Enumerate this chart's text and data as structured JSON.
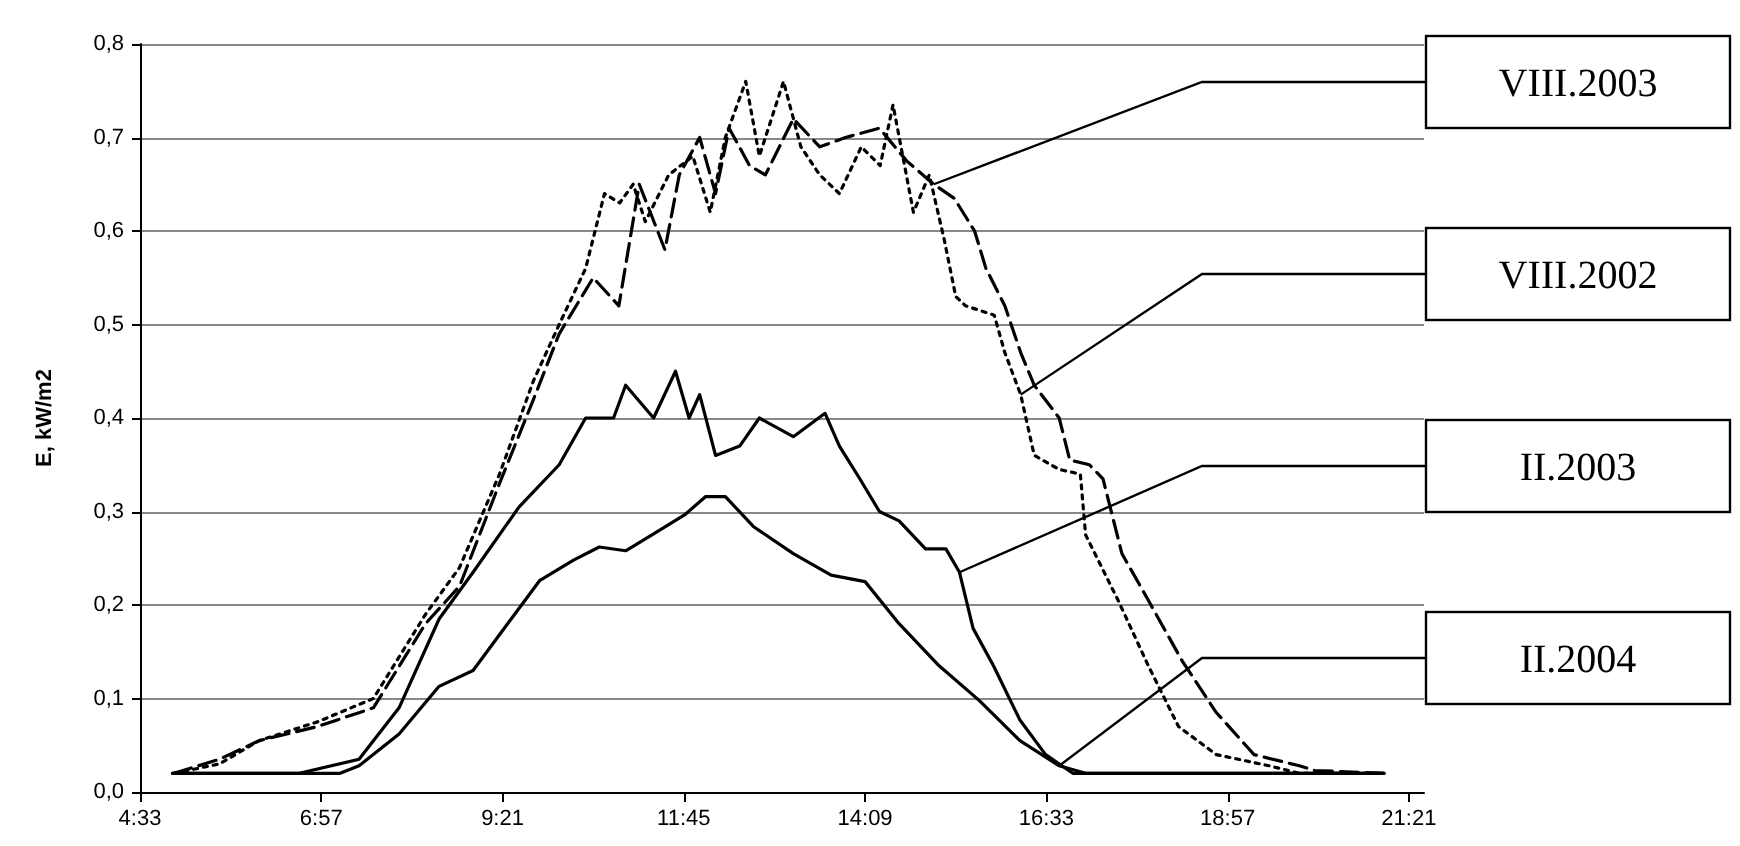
{
  "chart_data": {
    "type": "line",
    "ylabel": "E, kW/m2",
    "xlim": [
      4.55,
      21.55
    ],
    "xticks": [
      {
        "value": 4.55,
        "label": "4:33"
      },
      {
        "value": 6.95,
        "label": "6:57"
      },
      {
        "value": 9.35,
        "label": "9:21"
      },
      {
        "value": 11.75,
        "label": "11:45"
      },
      {
        "value": 14.15,
        "label": "14:09"
      },
      {
        "value": 16.55,
        "label": "16:33"
      },
      {
        "value": 18.95,
        "label": "18:57"
      },
      {
        "value": 21.35,
        "label": "21:21"
      }
    ],
    "ylim": [
      0,
      0.8
    ],
    "yticks": [
      {
        "value": 0,
        "label": "0,0"
      },
      {
        "value": 0.1,
        "label": "0,1"
      },
      {
        "value": 0.2,
        "label": "0,2"
      },
      {
        "value": 0.3,
        "label": "0,3"
      },
      {
        "value": 0.4,
        "label": "0,4"
      },
      {
        "value": 0.5,
        "label": "0,5"
      },
      {
        "value": 0.6,
        "label": "0,6"
      },
      {
        "value": 0.7,
        "label": "0,7"
      },
      {
        "value": 0.8,
        "label": "0,8"
      }
    ],
    "grid": "y",
    "marker": "none",
    "series": [
      {
        "name": "VIII.2003",
        "color": "#000000",
        "line_style": "dashed",
        "x": [
          5.0,
          5.6,
          6.13,
          6.9,
          7.64,
          8.33,
          8.78,
          9.31,
          9.76,
          10.1,
          10.55,
          10.89,
          11.16,
          11.5,
          11.69,
          11.96,
          12.17,
          12.35,
          12.62,
          12.83,
          13.2,
          13.55,
          13.89,
          14.34,
          14.7,
          15.06,
          15.33,
          15.6,
          15.75,
          16.0,
          16.21,
          16.39,
          16.72,
          16.86,
          17.12,
          17.3,
          17.55,
          17.9,
          18.35,
          18.8,
          19.3,
          19.9,
          20.1,
          21.02
        ],
        "values": [
          0.02,
          0.035,
          0.055,
          0.07,
          0.09,
          0.18,
          0.22,
          0.33,
          0.42,
          0.49,
          0.55,
          0.52,
          0.65,
          0.58,
          0.66,
          0.7,
          0.64,
          0.71,
          0.67,
          0.66,
          0.72,
          0.69,
          0.7,
          0.71,
          0.675,
          0.65,
          0.635,
          0.6,
          0.56,
          0.52,
          0.47,
          0.435,
          0.4,
          0.355,
          0.35,
          0.335,
          0.255,
          0.205,
          0.14,
          0.085,
          0.04,
          0.028,
          0.023,
          0.02
        ]
      },
      {
        "name": "VIII.2002",
        "color": "#000000",
        "line_style": "dotted",
        "x": [
          5.0,
          5.6,
          6.13,
          6.9,
          7.64,
          8.33,
          8.78,
          9.31,
          9.76,
          10.1,
          10.45,
          10.7,
          10.9,
          11.08,
          11.24,
          11.55,
          11.87,
          12.1,
          12.3,
          12.57,
          12.75,
          13.07,
          13.3,
          13.55,
          13.81,
          14.1,
          14.35,
          14.52,
          14.79,
          15.0,
          15.2,
          15.35,
          15.48,
          15.86,
          16.0,
          16.21,
          16.39,
          16.72,
          17.0,
          17.07,
          17.5,
          17.9,
          18.3,
          18.8,
          19.5,
          19.9,
          21.02
        ],
        "values": [
          0.02,
          0.03,
          0.055,
          0.075,
          0.1,
          0.19,
          0.24,
          0.34,
          0.44,
          0.5,
          0.56,
          0.64,
          0.63,
          0.65,
          0.61,
          0.66,
          0.68,
          0.62,
          0.7,
          0.76,
          0.68,
          0.76,
          0.69,
          0.66,
          0.64,
          0.69,
          0.67,
          0.735,
          0.62,
          0.66,
          0.59,
          0.53,
          0.52,
          0.51,
          0.47,
          0.425,
          0.36,
          0.345,
          0.34,
          0.275,
          0.205,
          0.135,
          0.07,
          0.04,
          0.028,
          0.02,
          0.02
        ]
      },
      {
        "name": "II.2003",
        "color": "#000000",
        "line_style": "solid",
        "x": [
          4.98,
          6.66,
          7.45,
          7.98,
          8.51,
          8.96,
          9.57,
          10.1,
          10.45,
          10.82,
          10.98,
          11.35,
          11.64,
          11.82,
          11.96,
          12.17,
          12.49,
          12.75,
          13.2,
          13.62,
          13.81,
          14.08,
          14.34,
          14.6,
          14.95,
          15.22,
          15.4,
          15.58,
          15.85,
          16.2,
          16.54,
          16.9,
          21.02
        ],
        "values": [
          0.02,
          0.02,
          0.035,
          0.09,
          0.185,
          0.235,
          0.305,
          0.35,
          0.4,
          0.4,
          0.435,
          0.4,
          0.45,
          0.4,
          0.425,
          0.36,
          0.37,
          0.4,
          0.38,
          0.405,
          0.37,
          0.335,
          0.3,
          0.29,
          0.26,
          0.26,
          0.235,
          0.175,
          0.135,
          0.077,
          0.04,
          0.02,
          0.02
        ]
      },
      {
        "name": "II.2004",
        "color": "#000000",
        "line_style": "solid",
        "x": [
          4.98,
          7.2,
          7.45,
          7.98,
          8.51,
          8.96,
          9.39,
          9.84,
          10.29,
          10.63,
          10.98,
          11.35,
          11.77,
          12.04,
          12.3,
          12.67,
          13.2,
          13.7,
          14.15,
          14.6,
          15.13,
          15.66,
          16.2,
          16.72,
          17.07,
          21.02
        ],
        "values": [
          0.02,
          0.02,
          0.028,
          0.062,
          0.113,
          0.13,
          0.177,
          0.226,
          0.248,
          0.262,
          0.258,
          0.276,
          0.297,
          0.316,
          0.316,
          0.284,
          0.255,
          0.232,
          0.225,
          0.18,
          0.135,
          0.098,
          0.055,
          0.028,
          0.02,
          0.02
        ]
      }
    ]
  }
}
